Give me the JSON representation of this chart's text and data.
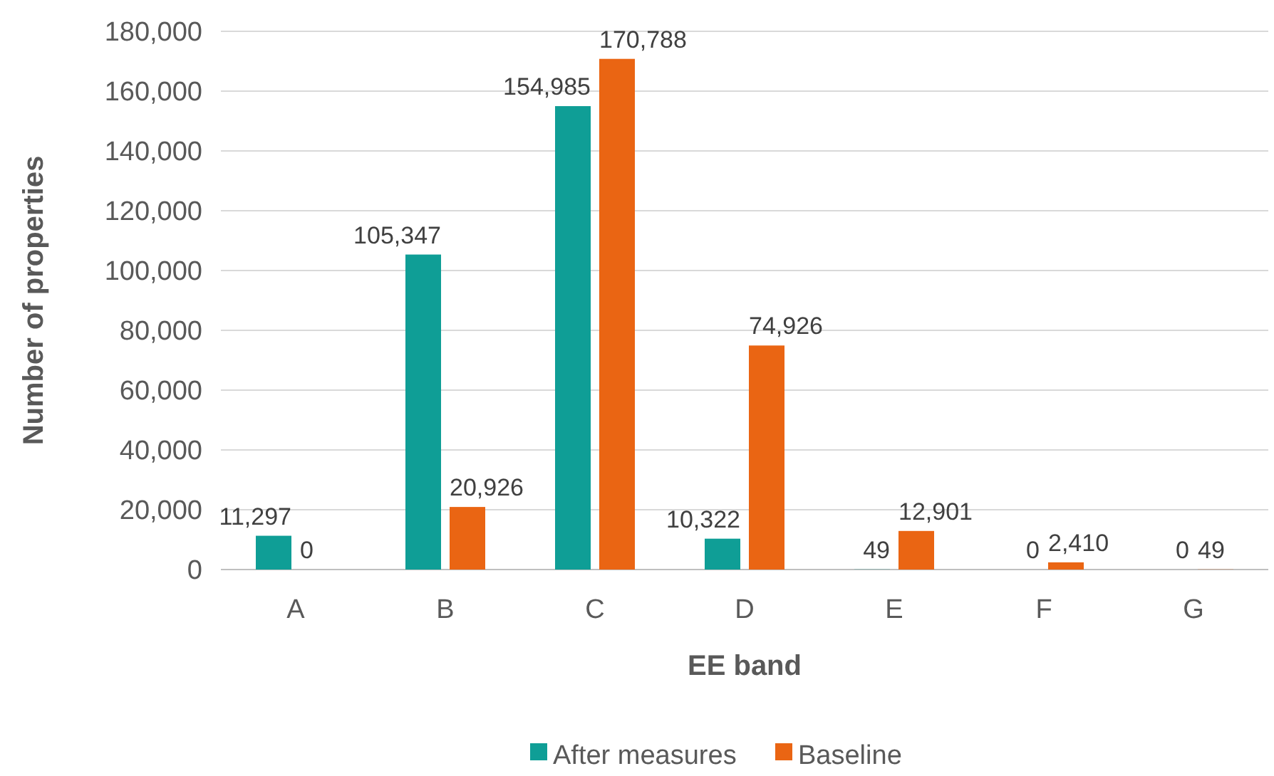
{
  "chart_data": {
    "type": "bar",
    "xlabel": "EE band",
    "ylabel": "Number of properties",
    "categories": [
      "A",
      "B",
      "C",
      "D",
      "E",
      "F",
      "G"
    ],
    "series": [
      {
        "name": "After measures",
        "color": "#0f9e96",
        "values": [
          11297,
          105347,
          154985,
          10322,
          49,
          0,
          0
        ],
        "value_labels": [
          "11,297",
          "105,347",
          "154,985",
          "10,322",
          "49",
          "0",
          "0"
        ]
      },
      {
        "name": "Baseline",
        "color": "#ea6513",
        "values": [
          0,
          20926,
          170788,
          74926,
          12901,
          2410,
          49
        ],
        "value_labels": [
          "0",
          "20,926",
          "170,788",
          "74,926",
          "12,901",
          "2,410",
          "49"
        ]
      }
    ],
    "ylim": [
      0,
      180000
    ],
    "yticks": [
      {
        "value": 0,
        "label": "0"
      },
      {
        "value": 20000,
        "label": "20,000"
      },
      {
        "value": 40000,
        "label": "40,000"
      },
      {
        "value": 60000,
        "label": "60,000"
      },
      {
        "value": 80000,
        "label": "80,000"
      },
      {
        "value": 100000,
        "label": "100,000"
      },
      {
        "value": 120000,
        "label": "120,000"
      },
      {
        "value": 140000,
        "label": "140,000"
      },
      {
        "value": 160000,
        "label": "160,000"
      },
      {
        "value": 180000,
        "label": "180,000"
      }
    ],
    "grid": "y",
    "legend": "bottom"
  }
}
